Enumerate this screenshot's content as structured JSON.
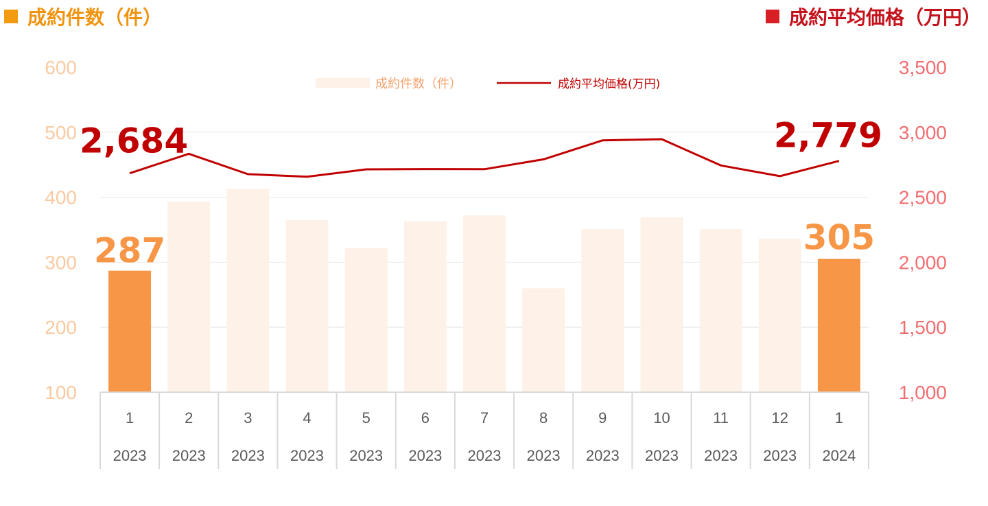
{
  "header": {
    "left_title": "成約件数（件）",
    "right_title": "成約平均価格（万円）"
  },
  "legend": {
    "bar_label": "成約件数（件）",
    "line_label": "成約平均価格(万円)"
  },
  "colors": {
    "bar_highlight": "#f79646",
    "bar_muted": "#fdf1e8",
    "line": "#c00000",
    "left_axis_text": "#f9caa0",
    "right_axis_text": "#f36c6f",
    "callout_count": "#f79646",
    "callout_price": "#c00000"
  },
  "callouts": {
    "first_count": "287",
    "last_count": "305",
    "first_price": "2,684",
    "last_price": "2,779"
  },
  "chart_data": {
    "type": "bar",
    "categories": [
      [
        "1",
        "2023"
      ],
      [
        "2",
        "2023"
      ],
      [
        "3",
        "2023"
      ],
      [
        "4",
        "2023"
      ],
      [
        "5",
        "2023"
      ],
      [
        "6",
        "2023"
      ],
      [
        "7",
        "2023"
      ],
      [
        "8",
        "2023"
      ],
      [
        "9",
        "2023"
      ],
      [
        "10",
        "2023"
      ],
      [
        "11",
        "2023"
      ],
      [
        "12",
        "2023"
      ],
      [
        "1",
        "2024"
      ]
    ],
    "series": [
      {
        "name": "成約件数（件）",
        "type": "bar",
        "axis": "left",
        "values": [
          287,
          393,
          413,
          365,
          322,
          363,
          372,
          260,
          351,
          369,
          351,
          336,
          305
        ],
        "highlight": [
          true,
          false,
          false,
          false,
          false,
          false,
          false,
          false,
          false,
          false,
          false,
          false,
          true
        ]
      },
      {
        "name": "成約平均価格(万円)",
        "type": "line",
        "axis": "right",
        "values": [
          2684,
          2834,
          2677,
          2657,
          2714,
          2716,
          2715,
          2791,
          2937,
          2946,
          2744,
          2662,
          2779
        ]
      }
    ],
    "y_left": {
      "ylim": [
        100,
        600
      ],
      "ticks": [
        "100",
        "200",
        "300",
        "400",
        "500",
        "600"
      ]
    },
    "y_right": {
      "ylim": [
        1000,
        3500
      ],
      "ticks": [
        "1,000",
        "1,500",
        "2,000",
        "2,500",
        "3,000",
        "3,500"
      ]
    },
    "grid": true,
    "legend_position": "top-center"
  }
}
